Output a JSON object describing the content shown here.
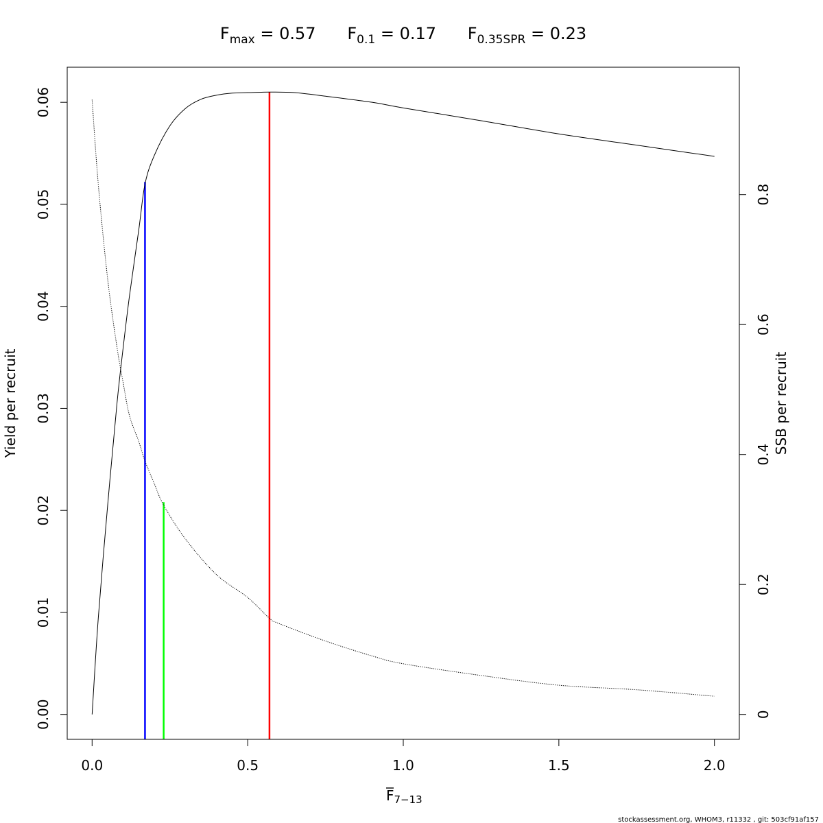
{
  "chart_data": {
    "type": "line",
    "title_parts": [
      {
        "symbol": "F",
        "sub": "max",
        "eq": " = ",
        "value": "0.57"
      },
      {
        "symbol": "F",
        "sub": "0.1",
        "eq": " = ",
        "value": "0.17"
      },
      {
        "symbol": "F",
        "sub": "0.35SPR",
        "eq": " = ",
        "value": "0.23"
      }
    ],
    "xlabel": {
      "symbol": "F",
      "sub": "7−13"
    },
    "ylabel_left": "Yield per recruit",
    "ylabel_right": "SSB per recruit",
    "xlim": [
      -0.08,
      2.08
    ],
    "ylim_left": [
      -0.00244,
      0.06344
    ],
    "ylim_right": [
      -0.0383,
      0.996
    ],
    "x_ticks": [
      0,
      0.5,
      1,
      1.5,
      2
    ],
    "x_tick_labels": [
      "0.0",
      "0.5",
      "1.0",
      "1.5",
      "2.0"
    ],
    "y_ticks_left": [
      0,
      0.01,
      0.02,
      0.03,
      0.04,
      0.05,
      0.06
    ],
    "y_tick_labels_left": [
      "0.00",
      "0.01",
      "0.02",
      "0.03",
      "0.04",
      "0.05",
      "0.06"
    ],
    "y_ticks_right": [
      0,
      0.2,
      0.4,
      0.6,
      0.8
    ],
    "y_tick_labels_right": [
      "0",
      "0.2",
      "0.4",
      "0.6",
      "0.8"
    ],
    "series": [
      {
        "style": "solid",
        "color": "#000000",
        "axis": "left",
        "x": [
          0,
          0.02,
          0.05,
          0.08,
          0.1,
          0.12,
          0.15,
          0.17,
          0.2,
          0.25,
          0.3,
          0.35,
          0.4,
          0.45,
          0.5,
          0.57,
          0.65,
          0.75,
          0.9,
          1.0,
          1.25,
          1.5,
          1.75,
          2.0
        ],
        "y": [
          0.0,
          0.0095,
          0.0205,
          0.0305,
          0.036,
          0.041,
          0.0475,
          0.052,
          0.0548,
          0.0577,
          0.0594,
          0.0603,
          0.0607,
          0.0609,
          0.06095,
          0.061,
          0.06095,
          0.0606,
          0.06,
          0.05945,
          0.0582,
          0.0569,
          0.0558,
          0.0547
        ]
      },
      {
        "style": "dotted",
        "color": "#000000",
        "axis": "right",
        "x": [
          0,
          0.02,
          0.05,
          0.08,
          0.1,
          0.12,
          0.15,
          0.17,
          0.2,
          0.23,
          0.3,
          0.4,
          0.5,
          0.57,
          0.6,
          0.75,
          0.9,
          1.0,
          1.25,
          1.5,
          1.75,
          2.0
        ],
        "y": [
          0.946,
          0.815,
          0.67,
          0.565,
          0.51,
          0.46,
          0.42,
          0.39,
          0.355,
          0.322,
          0.27,
          0.215,
          0.18,
          0.148,
          0.14,
          0.113,
          0.09,
          0.078,
          0.06,
          0.045,
          0.038,
          0.028
        ]
      }
    ],
    "reference_lines": [
      {
        "x": 0.17,
        "y_top": 0.0522,
        "color": "#0000ff"
      },
      {
        "x": 0.23,
        "y_top": 0.0208,
        "color": "#00ff00"
      },
      {
        "x": 0.57,
        "y_top": 0.061,
        "color": "#ff0000"
      }
    ]
  },
  "footer": "stockassessment.org, WHOM3, r11332 , git: 503cf91af157"
}
